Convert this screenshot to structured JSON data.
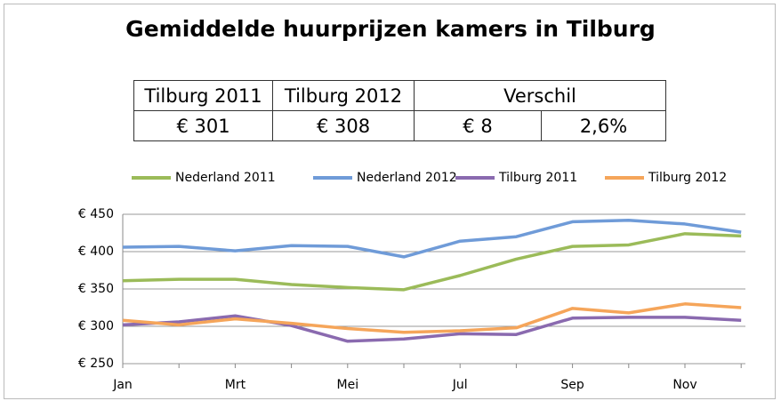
{
  "table": {
    "header": [
      "Tilburg 2011",
      "Tilburg 2012",
      "Verschil"
    ],
    "rows": [
      [
        "€ 301",
        "€ 308",
        "€ 8",
        "2,6%"
      ]
    ]
  },
  "chart_data": {
    "type": "line",
    "title": "Gemiddelde huurprijzen kamers in Tilburg",
    "categories": [
      "Jan",
      null,
      "Mrt",
      null,
      "Mei",
      null,
      "Jul",
      null,
      "Sep",
      null,
      "Nov",
      null
    ],
    "series": [
      {
        "name": "Nederland 2011",
        "color": "#9bbb59",
        "values": [
          361,
          363,
          363,
          356,
          352,
          349,
          368,
          390,
          407,
          409,
          424,
          421
        ]
      },
      {
        "name": "Nederland 2012",
        "color": "#6f9bd8",
        "values": [
          406,
          407,
          401,
          408,
          407,
          393,
          414,
          420,
          440,
          442,
          437,
          426
        ]
      },
      {
        "name": "Tilburg 2011",
        "color": "#8a6aaf",
        "values": [
          302,
          306,
          314,
          301,
          280,
          283,
          290,
          289,
          311,
          312,
          312,
          308
        ]
      },
      {
        "name": "Tilburg 2012",
        "color": "#f5a55a",
        "values": [
          308,
          302,
          310,
          304,
          297,
          292,
          294,
          298,
          324,
          318,
          330,
          325
        ]
      }
    ],
    "ylim": [
      250,
      450
    ],
    "yticks": [
      {
        "value": 250,
        "label": "€ 250"
      },
      {
        "value": 300,
        "label": "€ 300"
      },
      {
        "value": 350,
        "label": "€ 350"
      },
      {
        "value": 400,
        "label": "€ 400"
      },
      {
        "value": 450,
        "label": "€ 450"
      }
    ],
    "grid": true,
    "legend": "top"
  }
}
